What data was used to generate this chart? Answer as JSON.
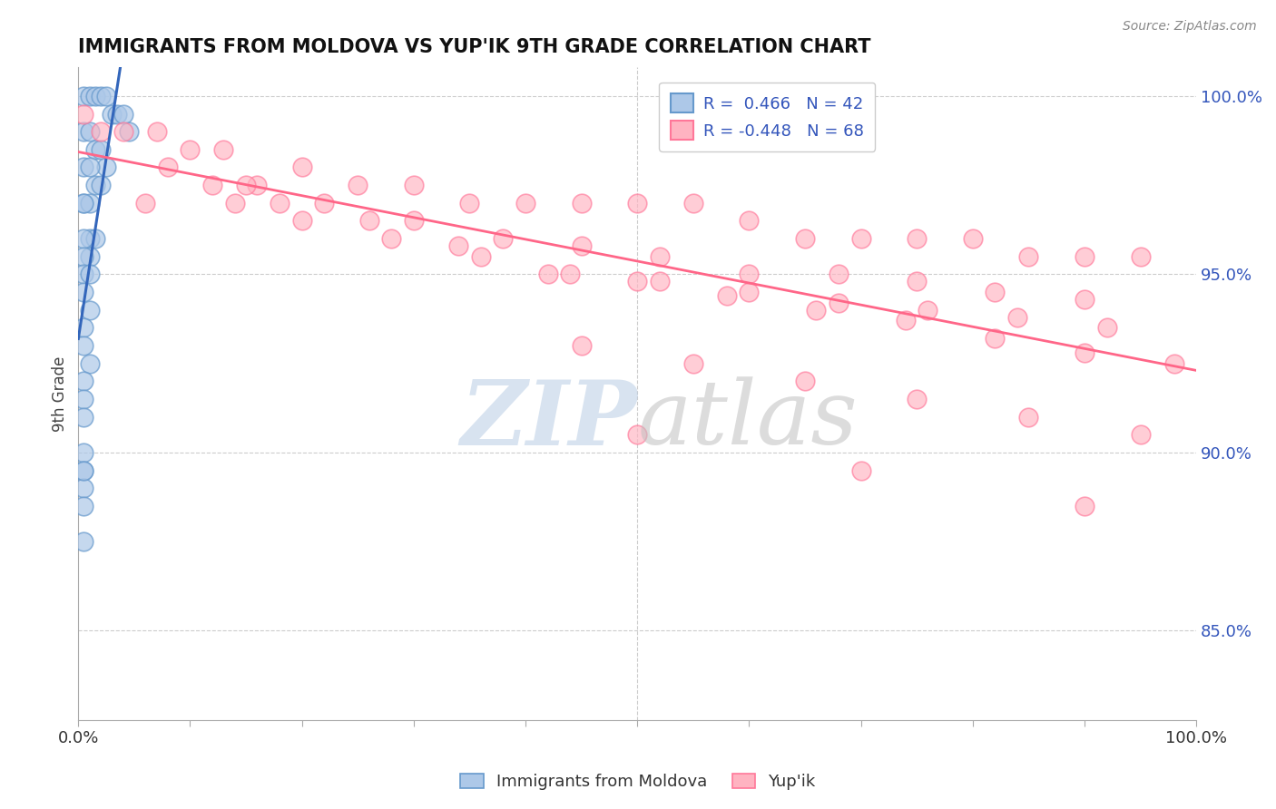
{
  "title": "IMMIGRANTS FROM MOLDOVA VS YUP'IK 9TH GRADE CORRELATION CHART",
  "source_text": "Source: ZipAtlas.com",
  "ylabel": "9th Grade",
  "blue_r": "0.466",
  "blue_n": "42",
  "pink_r": "-0.448",
  "pink_n": "68",
  "blue_color": "#adc8e8",
  "pink_color": "#ffb3c1",
  "blue_edge_color": "#6699cc",
  "pink_edge_color": "#ff7799",
  "blue_line_color": "#3366bb",
  "pink_line_color": "#ff6688",
  "watermark_zip_color": "#c8d8ea",
  "watermark_atlas_color": "#c8c8c8",
  "background_color": "#ffffff",
  "blue_scatter_x": [
    0.005,
    0.01,
    0.015,
    0.02,
    0.025,
    0.03,
    0.035,
    0.04,
    0.045,
    0.005,
    0.01,
    0.015,
    0.02,
    0.025,
    0.005,
    0.01,
    0.015,
    0.02,
    0.005,
    0.01,
    0.005,
    0.01,
    0.015,
    0.005,
    0.01,
    0.005,
    0.005,
    0.01,
    0.005,
    0.01,
    0.005,
    0.005,
    0.01,
    0.005,
    0.005,
    0.005,
    0.005,
    0.005,
    0.005,
    0.005,
    0.005,
    0.005
  ],
  "blue_scatter_y": [
    1.0,
    1.0,
    1.0,
    1.0,
    1.0,
    0.995,
    0.995,
    0.995,
    0.99,
    0.99,
    0.99,
    0.985,
    0.985,
    0.98,
    0.98,
    0.98,
    0.975,
    0.975,
    0.97,
    0.97,
    0.97,
    0.96,
    0.96,
    0.96,
    0.955,
    0.955,
    0.95,
    0.95,
    0.945,
    0.94,
    0.935,
    0.93,
    0.925,
    0.92,
    0.915,
    0.91,
    0.9,
    0.895,
    0.89,
    0.885,
    0.875,
    0.895
  ],
  "pink_scatter_x": [
    0.005,
    0.02,
    0.04,
    0.07,
    0.1,
    0.13,
    0.16,
    0.2,
    0.25,
    0.3,
    0.35,
    0.4,
    0.45,
    0.5,
    0.55,
    0.6,
    0.65,
    0.7,
    0.75,
    0.8,
    0.85,
    0.9,
    0.95,
    0.08,
    0.15,
    0.22,
    0.3,
    0.38,
    0.45,
    0.52,
    0.6,
    0.68,
    0.75,
    0.82,
    0.9,
    0.12,
    0.2,
    0.28,
    0.36,
    0.44,
    0.52,
    0.6,
    0.68,
    0.76,
    0.84,
    0.92,
    0.18,
    0.26,
    0.34,
    0.42,
    0.5,
    0.58,
    0.66,
    0.74,
    0.82,
    0.9,
    0.98,
    0.06,
    0.14,
    0.45,
    0.55,
    0.65,
    0.75,
    0.85,
    0.95,
    0.5,
    0.7,
    0.9
  ],
  "pink_scatter_y": [
    0.995,
    0.99,
    0.99,
    0.99,
    0.985,
    0.985,
    0.975,
    0.98,
    0.975,
    0.975,
    0.97,
    0.97,
    0.97,
    0.97,
    0.97,
    0.965,
    0.96,
    0.96,
    0.96,
    0.96,
    0.955,
    0.955,
    0.955,
    0.98,
    0.975,
    0.97,
    0.965,
    0.96,
    0.958,
    0.955,
    0.95,
    0.95,
    0.948,
    0.945,
    0.943,
    0.975,
    0.965,
    0.96,
    0.955,
    0.95,
    0.948,
    0.945,
    0.942,
    0.94,
    0.938,
    0.935,
    0.97,
    0.965,
    0.958,
    0.95,
    0.948,
    0.944,
    0.94,
    0.937,
    0.932,
    0.928,
    0.925,
    0.97,
    0.97,
    0.93,
    0.925,
    0.92,
    0.915,
    0.91,
    0.905,
    0.905,
    0.895,
    0.885
  ],
  "xlim": [
    0.0,
    1.0
  ],
  "ylim": [
    0.825,
    1.008
  ],
  "y_ticks": [
    0.85,
    0.9,
    0.95,
    1.0
  ],
  "x_ticks": [
    0.0,
    0.1,
    0.2,
    0.3,
    0.4,
    0.5,
    0.6,
    0.7,
    0.8,
    0.9,
    1.0
  ]
}
